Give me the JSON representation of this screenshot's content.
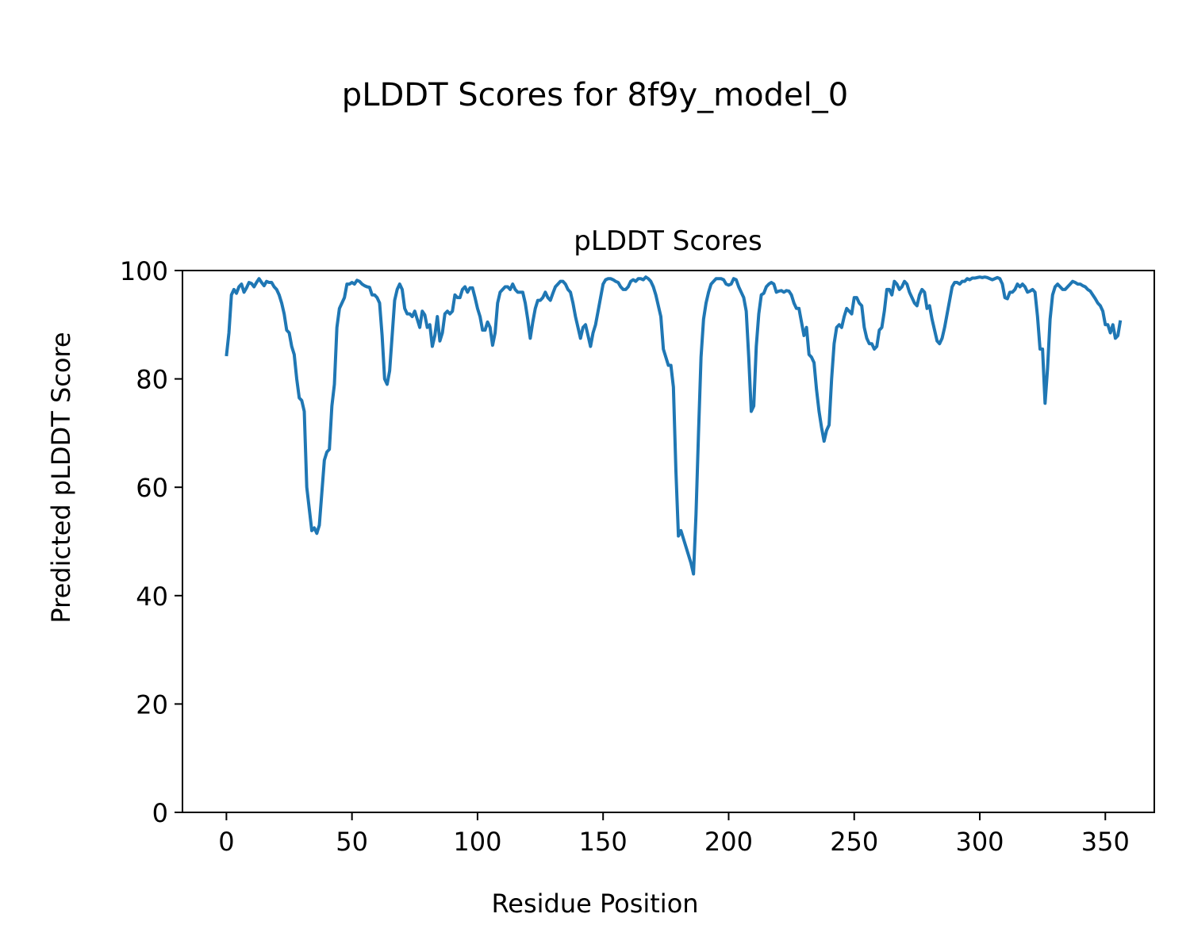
{
  "chart_data": {
    "type": "line",
    "suptitle": "pLDDT Scores for 8f9y_model_0",
    "title": "pLDDT Scores",
    "xlabel": "Residue Position",
    "ylabel": "Predicted pLDDT Score",
    "xlim": [
      -17.5,
      369.5
    ],
    "ylim": [
      0,
      100
    ],
    "x_ticks": [
      0,
      50,
      100,
      150,
      200,
      250,
      300,
      350
    ],
    "y_ticks": [
      0,
      20,
      40,
      60,
      80,
      100
    ],
    "grid": false,
    "legend": "none",
    "line_color": "#1f77b4",
    "x_start": 0,
    "x_step": 1,
    "values": [
      84.2,
      88.5,
      95.5,
      96.5,
      95.8,
      97.0,
      97.5,
      96.0,
      96.8,
      97.8,
      97.6,
      97.0,
      97.8,
      98.5,
      97.8,
      97.2,
      98.0,
      97.8,
      97.8,
      97.0,
      96.5,
      95.5,
      94.0,
      92.0,
      89.0,
      88.5,
      86.0,
      84.5,
      80.0,
      76.5,
      76.0,
      74.0,
      60.0,
      56.0,
      52.0,
      52.5,
      51.5,
      53.0,
      59.0,
      65.0,
      66.5,
      67.0,
      75.0,
      79.0,
      89.5,
      93.0,
      94.0,
      95.0,
      97.5,
      97.5,
      97.8,
      97.5,
      98.2,
      98.0,
      97.5,
      97.2,
      97.0,
      96.9,
      95.5,
      95.5,
      95.0,
      94.0,
      88.0,
      80.0,
      79.0,
      81.5,
      88.0,
      94.5,
      96.5,
      97.5,
      96.5,
      93.0,
      92.0,
      92.0,
      91.5,
      92.5,
      91.0,
      89.5,
      92.5,
      91.8,
      89.5,
      90.0,
      86.0,
      88.0,
      91.5,
      87.0,
      88.5,
      92.0,
      92.5,
      92.0,
      92.5,
      95.5,
      95.0,
      95.0,
      96.5,
      97.0,
      96.0,
      96.8,
      96.8,
      95.0,
      93.0,
      91.5,
      89.0,
      89.0,
      90.5,
      89.5,
      86.2,
      88.5,
      94.0,
      96.0,
      96.5,
      97.0,
      97.0,
      96.5,
      97.5,
      96.5,
      96.0,
      96.0,
      96.0,
      94.0,
      91.0,
      87.5,
      90.5,
      93.0,
      94.5,
      94.5,
      95.0,
      96.0,
      95.0,
      94.5,
      95.8,
      97.0,
      97.5,
      98.0,
      98.0,
      97.5,
      96.5,
      96.0,
      94.0,
      91.5,
      89.5,
      87.5,
      89.5,
      90.0,
      88.0,
      86.0,
      88.5,
      90.0,
      92.5,
      95.0,
      97.5,
      98.3,
      98.5,
      98.5,
      98.3,
      98.0,
      97.8,
      97.0,
      96.5,
      96.5,
      97.0,
      98.0,
      98.3,
      98.0,
      98.5,
      98.5,
      98.3,
      98.8,
      98.5,
      98.0,
      97.0,
      95.5,
      93.5,
      91.5,
      85.5,
      84.0,
      82.5,
      82.5,
      78.5,
      63.0,
      51.0,
      52.0,
      50.5,
      49.0,
      47.5,
      46.0,
      44.0,
      55.0,
      70.0,
      84.0,
      91.0,
      94.0,
      96.0,
      97.5,
      98.0,
      98.5,
      98.5,
      98.5,
      98.3,
      97.5,
      97.3,
      97.5,
      98.5,
      98.3,
      97.0,
      96.0,
      95.0,
      92.5,
      84.0,
      74.0,
      75.0,
      86.0,
      92.0,
      95.5,
      95.8,
      97.0,
      97.5,
      97.8,
      97.5,
      96.0,
      96.2,
      96.3,
      96.0,
      96.3,
      96.2,
      95.5,
      94.0,
      93.0,
      93.0,
      90.5,
      88.0,
      89.5,
      84.5,
      84.0,
      83.0,
      78.0,
      74.0,
      71.0,
      68.5,
      70.5,
      71.5,
      80.0,
      86.5,
      89.5,
      90.0,
      89.5,
      91.5,
      93.0,
      92.5,
      92.0,
      95.0,
      95.0,
      94.0,
      93.5,
      89.5,
      87.5,
      86.5,
      86.5,
      85.5,
      86.0,
      89.0,
      89.5,
      92.5,
      96.5,
      96.5,
      95.5,
      98.0,
      97.5,
      96.5,
      97.0,
      98.0,
      97.5,
      96.0,
      95.0,
      94.0,
      93.5,
      95.5,
      96.5,
      96.0,
      93.0,
      93.5,
      91.0,
      89.0,
      87.0,
      86.5,
      87.5,
      89.5,
      92.0,
      94.5,
      97.0,
      97.8,
      97.8,
      97.5,
      98.0,
      98.0,
      98.5,
      98.3,
      98.6,
      98.6,
      98.7,
      98.8,
      98.7,
      98.8,
      98.7,
      98.5,
      98.3,
      98.5,
      98.7,
      98.5,
      97.5,
      95.0,
      94.8,
      96.0,
      96.0,
      96.5,
      97.5,
      97.0,
      97.5,
      97.0,
      96.0,
      96.2,
      96.5,
      96.0,
      91.5,
      85.5,
      85.5,
      75.5,
      82.0,
      91.0,
      95.5,
      97.0,
      97.5,
      97.0,
      96.5,
      96.5,
      97.0,
      97.5,
      98.0,
      97.8,
      97.5,
      97.5,
      97.2,
      97.0,
      96.5,
      96.2,
      95.5,
      94.8,
      94.0,
      93.5,
      92.5,
      90.0,
      90.0,
      88.5,
      90.0,
      87.5,
      88.0,
      90.8
    ]
  }
}
